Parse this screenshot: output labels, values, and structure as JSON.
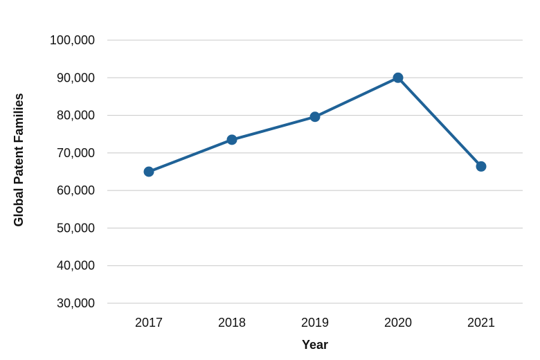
{
  "chart_data": {
    "type": "line",
    "title": "",
    "xlabel": "Year",
    "ylabel": "Global Patent Families",
    "categories": [
      "2017",
      "2018",
      "2019",
      "2020",
      "2021"
    ],
    "series": [
      {
        "values": [
          65000,
          73500,
          79600,
          90000,
          66400
        ]
      }
    ],
    "ylim": [
      30000,
      100000
    ],
    "yticks": [
      30000,
      40000,
      50000,
      60000,
      70000,
      80000,
      90000,
      100000
    ],
    "ytick_labels": [
      "30,000",
      "40,000",
      "50,000",
      "60,000",
      "70,000",
      "80,000",
      "90,000",
      "100,000"
    ],
    "grid": true,
    "legend": "none",
    "line_color": "#1f6297"
  }
}
